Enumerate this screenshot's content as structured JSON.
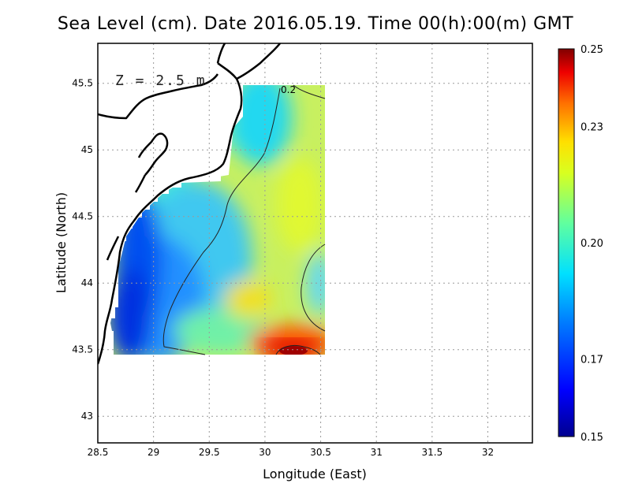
{
  "title": "Sea Level (cm). Date 2016.05.19. Time 00(h):00(m) GMT",
  "depth_label": "Z = 2.5 m",
  "contour_label": "0.2",
  "x_axis": {
    "label": "Longitude (East)",
    "range": [
      28.5,
      32.4
    ],
    "ticks": [
      28.5,
      29,
      29.5,
      30,
      30.5,
      31,
      31.5,
      32
    ],
    "tick_labels": [
      "28.5",
      "29",
      "29.5",
      "30",
      "30.5",
      "31",
      "31.5",
      "32"
    ]
  },
  "y_axis": {
    "label": "Latitude (North)",
    "range": [
      42.8,
      45.8
    ],
    "ticks": [
      43,
      43.5,
      44,
      44.5,
      45,
      45.5
    ],
    "tick_labels": [
      "43",
      "43.5",
      "44",
      "44.5",
      "45",
      "45.5"
    ]
  },
  "colorbar": {
    "min": 0.15,
    "max": 0.25,
    "ticks": [
      0.15,
      0.17,
      0.2,
      0.23,
      0.25
    ],
    "tick_labels": [
      "0.15",
      "0.17",
      "0.20",
      "0.23",
      "0.25"
    ]
  },
  "grid": true,
  "colors": {
    "frame": "#000000",
    "grid": "#9a9a9a",
    "coast": "#000000"
  }
}
